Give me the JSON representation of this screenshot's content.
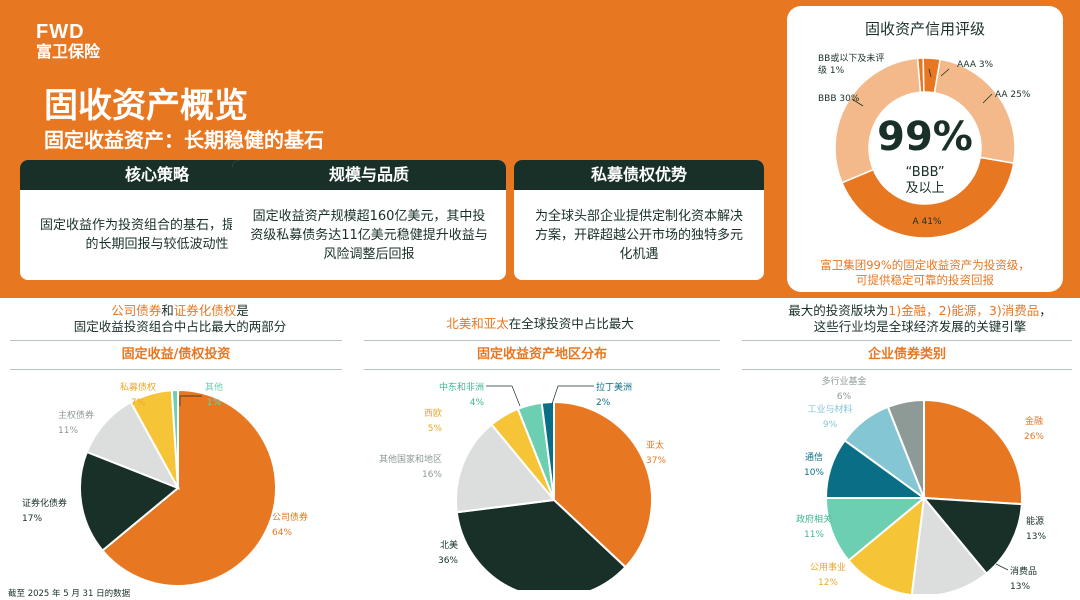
{
  "brand": {
    "logo_mark": "FWD",
    "logo_cn": "富卫保险"
  },
  "header": {
    "title": "固收资产概览",
    "subtitle": "固定收益资产：长期稳健的基石"
  },
  "cards": [
    {
      "title": "核心策略",
      "body": "固定收益作为投资组合的基石，提供稳定的长期回报与较低波动性"
    },
    {
      "title": "规模与品质",
      "body": "固定收益资产规模超160亿美元，其中投资级私募债务达11亿美元稳健提升收益与风险调整后回报"
    },
    {
      "title": "私募债权优势",
      "body": "为全球头部企业提供定制化资本解决方案，开辟超越公开市场的独特多元化机遇"
    }
  ],
  "rating": {
    "title": "固收资产信用评级",
    "center_value": "99%",
    "center_sub1": "“BBB”",
    "center_sub2": "及以上",
    "note_line1": "富卫集团99%的固定收益资产为投资级，",
    "note_line2": "可提供稳定可靠的投资回报"
  },
  "sections": {
    "left_note_hl1": "公司债券",
    "left_note_and": "和",
    "left_note_hl2": "证券化债权",
    "left_note_tail": "是",
    "left_note_line2": "固定收益投资组合中占比最大的两部分",
    "left_title": "固定收益/债权投资",
    "mid_note_hl": "北美和亚太",
    "mid_note_tail": "在全球投资中占比最大",
    "mid_title": "固定收益资产地区分布",
    "right_note_pre": "最大的投资版块为",
    "right_note_hl": "1)金融，2)能源，3)消费品",
    "right_note_tail": "，",
    "right_note_line2": "这些行业均是全球经济发展的关键引擎",
    "right_title": "企业债券类别"
  },
  "footnote": "截至 2025 年 5 月 31 日的数据",
  "colors": {
    "orange": "#e87722",
    "dark_green": "#183028",
    "light_orange": "#f3b98a",
    "grey": "#dcdedd",
    "yellow": "#f6c537",
    "mint": "#6ccfb1",
    "blue": "#0a6f86",
    "light_blue": "#84c6d4",
    "slate": "#8e9a96"
  },
  "chart_data": [
    {
      "type": "pie",
      "title": "固收资产信用评级",
      "style": "donut",
      "series": [
        {
          "label": "AAA",
          "value": 3,
          "display": "AAA 3%",
          "color": "#e87722"
        },
        {
          "label": "AA",
          "value": 25,
          "display": "AA 25%",
          "color": "#f3b98a"
        },
        {
          "label": "A",
          "value": 41,
          "display": "A 41%",
          "color": "#e87722"
        },
        {
          "label": "BBB",
          "value": 30,
          "display": "BBB 30%",
          "color": "#f3b98a"
        },
        {
          "label": "BB或以下及未评级",
          "value": 1,
          "display1": "BB或以下及未评",
          "display2": "级 1%",
          "color": "#e87722"
        }
      ]
    },
    {
      "type": "pie",
      "title": "固定收益/债权投资",
      "series": [
        {
          "label": "公司债券",
          "value": 64,
          "pct": "64%",
          "color": "#e87722"
        },
        {
          "label": "证券化债券",
          "value": 17,
          "pct": "17%",
          "color": "#183028"
        },
        {
          "label": "主权债券",
          "value": 11,
          "pct": "11%",
          "color": "#dcdedd"
        },
        {
          "label": "私募债权",
          "value": 7,
          "pct": "7%",
          "color": "#f6c537"
        },
        {
          "label": "其他",
          "value": 1,
          "pct": "1%",
          "color": "#6ccfb1"
        }
      ]
    },
    {
      "type": "pie",
      "title": "固定收益资产地区分布",
      "series": [
        {
          "label": "亚太",
          "value": 37,
          "pct": "37%",
          "color": "#e87722"
        },
        {
          "label": "北美",
          "value": 36,
          "pct": "36%",
          "color": "#183028"
        },
        {
          "label": "其他国家和地区",
          "value": 16,
          "pct": "16%",
          "color": "#dcdedd"
        },
        {
          "label": "西欧",
          "value": 5,
          "pct": "5%",
          "color": "#f6c537"
        },
        {
          "label": "中东和非洲",
          "value": 4,
          "pct": "4%",
          "color": "#6ccfb1"
        },
        {
          "label": "拉丁美洲",
          "value": 2,
          "pct": "2%",
          "color": "#0a6f86"
        }
      ]
    },
    {
      "type": "pie",
      "title": "企业债券类别",
      "series": [
        {
          "label": "金融",
          "value": 26,
          "pct": "26%",
          "color": "#e87722"
        },
        {
          "label": "能源",
          "value": 13,
          "pct": "13%",
          "color": "#183028"
        },
        {
          "label": "消费品",
          "value": 13,
          "pct": "13%",
          "color": "#dcdedd"
        },
        {
          "label": "公用事业",
          "value": 12,
          "pct": "12%",
          "color": "#f6c537"
        },
        {
          "label": "政府相关",
          "value": 11,
          "pct": "11%",
          "color": "#6ccfb1"
        },
        {
          "label": "通信",
          "value": 10,
          "pct": "10%",
          "color": "#0a6f86"
        },
        {
          "label": "工业与材料",
          "value": 9,
          "pct": "9%",
          "color": "#84c6d4"
        },
        {
          "label": "多行业基金",
          "value": 6,
          "pct": "6%",
          "color": "#8e9a96"
        }
      ]
    }
  ]
}
